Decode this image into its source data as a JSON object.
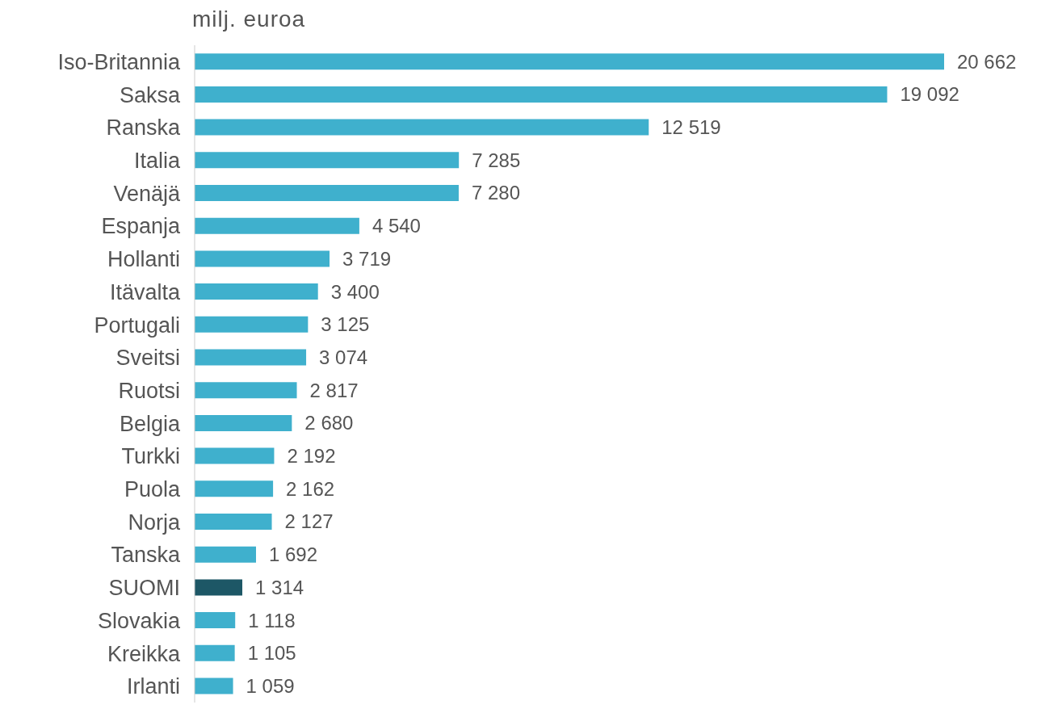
{
  "chart_data": {
    "type": "bar",
    "orientation": "horizontal",
    "title": "milj. euroa",
    "categories": [
      "Iso-Britannia",
      "Saksa",
      "Ranska",
      "Italia",
      "Venäjä",
      "Espanja",
      "Hollanti",
      "Itävalta",
      "Portugali",
      "Sveitsi",
      "Ruotsi",
      "Belgia",
      "Turkki",
      "Puola",
      "Norja",
      "Tanska",
      "SUOMI",
      "Slovakia",
      "Kreikka",
      "Irlanti"
    ],
    "values": [
      20662,
      19092,
      12519,
      7285,
      7280,
      4540,
      3719,
      3400,
      3125,
      3074,
      2817,
      2680,
      2192,
      2162,
      2127,
      1692,
      1314,
      1118,
      1105,
      1059
    ],
    "value_labels": [
      "20 662",
      "19 092",
      "12 519",
      "7 285",
      "7 280",
      "4 540",
      "3 719",
      "3 400",
      "3 125",
      "3 074",
      "2 817",
      "2 680",
      "2 192",
      "2 162",
      "2 127",
      "1 692",
      "1 314",
      "1 118",
      "1 105",
      "1 059"
    ],
    "colors": [
      "#3fb0cd",
      "#3fb0cd",
      "#3fb0cd",
      "#3fb0cd",
      "#3fb0cd",
      "#3fb0cd",
      "#3fb0cd",
      "#3fb0cd",
      "#3fb0cd",
      "#3fb0cd",
      "#3fb0cd",
      "#3fb0cd",
      "#3fb0cd",
      "#3fb0cd",
      "#3fb0cd",
      "#3fb0cd",
      "#1d5766",
      "#3fb0cd",
      "#3fb0cd",
      "#3fb0cd"
    ],
    "grid": false,
    "legend": false
  }
}
